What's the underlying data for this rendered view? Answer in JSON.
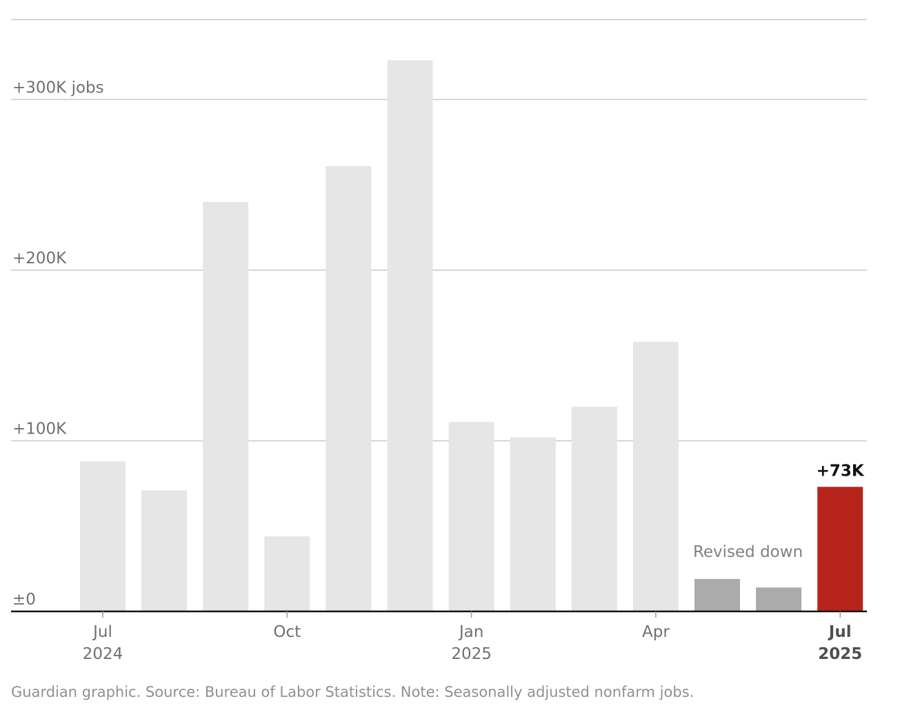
{
  "chart_data": {
    "type": "bar",
    "categories": [
      "Jul 2024",
      "Aug 2024",
      "Sep 2024",
      "Oct 2024",
      "Nov 2024",
      "Dec 2024",
      "Jan 2025",
      "Feb 2025",
      "Mar 2025",
      "Apr 2025",
      "May 2025",
      "Jun 2025",
      "Jul 2025"
    ],
    "values": [
      88,
      71,
      240,
      44,
      261,
      323,
      111,
      102,
      120,
      158,
      19,
      14,
      73
    ],
    "bar_status": [
      "normal",
      "normal",
      "normal",
      "normal",
      "normal",
      "normal",
      "normal",
      "normal",
      "normal",
      "normal",
      "revised",
      "revised",
      "latest"
    ],
    "colors": {
      "normal": "#e6e6e6",
      "revised": "#ababab",
      "latest": "#b7241b",
      "grid": "#c8c8c8",
      "baseline": "#121212"
    },
    "ylim": [
      0,
      347
    ],
    "y_ticks": [
      {
        "value": 0,
        "label": "±0"
      },
      {
        "value": 100,
        "label": "+100K"
      },
      {
        "value": 200,
        "label": "+200K"
      },
      {
        "value": 300,
        "label": "+300K jobs"
      }
    ],
    "x_ticks": [
      {
        "index": 0,
        "month": "Jul",
        "year": "2024",
        "highlight": false
      },
      {
        "index": 3,
        "month": "Oct",
        "year": "",
        "highlight": false
      },
      {
        "index": 6,
        "month": "Jan",
        "year": "2025",
        "highlight": false
      },
      {
        "index": 9,
        "month": "Apr",
        "year": "",
        "highlight": false
      },
      {
        "index": 12,
        "month": "Jul",
        "year": "2025",
        "highlight": true
      }
    ],
    "annotations": [
      {
        "text": "Revised down",
        "near_indices": [
          10,
          11
        ]
      },
      {
        "text": "+73K",
        "index": 12
      }
    ],
    "grid": true
  },
  "footnote": "Guardian graphic. Source: Bureau of Labor Statistics. Note: Seasonally adjusted nonfarm jobs."
}
